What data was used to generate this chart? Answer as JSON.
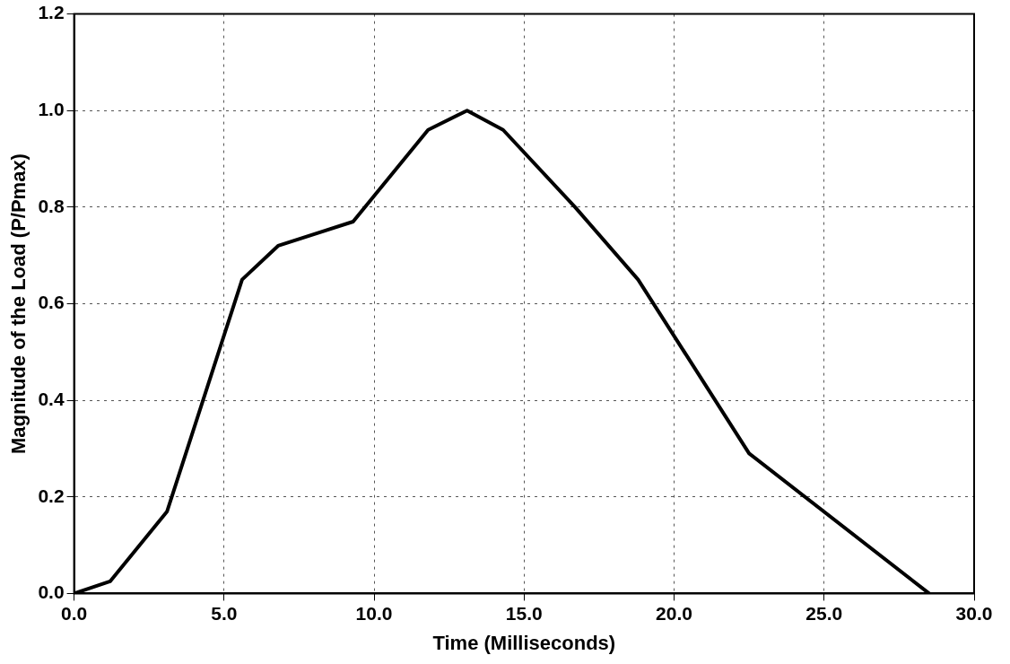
{
  "chart_data": {
    "type": "line",
    "xlabel": "Time (Milliseconds)",
    "ylabel": "Magnitude of the Load (P/Pmax)",
    "x": [
      0,
      1.2,
      3.1,
      5.6,
      6.8,
      9.3,
      11.8,
      13.1,
      14.3,
      16.7,
      18.8,
      22.5,
      28.5
    ],
    "series": [
      {
        "color": "#000000",
        "values": [
          0,
          0.025,
          0.17,
          0.65,
          0.72,
          0.77,
          0.96,
          1.0,
          0.96,
          0.8,
          0.65,
          0.29,
          0
        ]
      }
    ],
    "xlim": [
      0,
      30
    ],
    "xticks": [
      {
        "value": 0,
        "label": "0.0"
      },
      {
        "value": 5,
        "label": "5.0"
      },
      {
        "value": 10,
        "label": "10.0"
      },
      {
        "value": 15,
        "label": "15.0"
      },
      {
        "value": 20,
        "label": "20.0"
      },
      {
        "value": 25,
        "label": "25.0"
      },
      {
        "value": 30,
        "label": "30.0"
      }
    ],
    "ylim": [
      0,
      1.2
    ],
    "yticks": [
      {
        "value": 0,
        "label": "0.0"
      },
      {
        "value": 0.2,
        "label": "0.2"
      },
      {
        "value": 0.4,
        "label": "0.4"
      },
      {
        "value": 0.6,
        "label": "0.6"
      },
      {
        "value": 0.8,
        "label": "0.8"
      },
      {
        "value": 1,
        "label": "1.0"
      },
      {
        "value": 1.2,
        "label": "1.2"
      }
    ],
    "grid": true,
    "marker": "none",
    "line_style": "solid",
    "legend": false
  }
}
